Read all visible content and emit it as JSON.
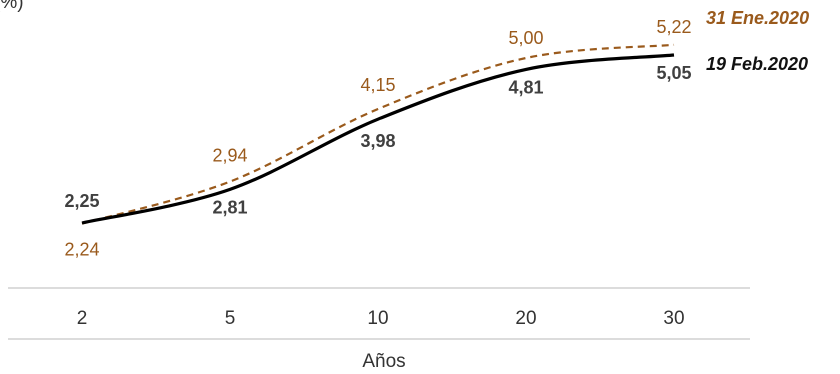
{
  "top_left_text": "(%)",
  "chart_data": {
    "type": "line",
    "x": [
      2,
      5,
      10,
      20,
      30
    ],
    "categories": [
      "2",
      "5",
      "10",
      "20",
      "30"
    ],
    "xlabel": "Años",
    "ylabel": "(%)",
    "ylim": [
      1.6,
      5.6
    ],
    "grid": false,
    "legend": "right, at line ends",
    "series": [
      {
        "name": "31 Ene.2020",
        "values": [
          2.24,
          2.94,
          4.15,
          5.0,
          5.22
        ],
        "labels": [
          "2,24",
          "2,94",
          "4,15",
          "5,00",
          "5,22"
        ],
        "color": "#9a5a1c",
        "style": "dashed"
      },
      {
        "name": "19 Feb.2020",
        "values": [
          2.25,
          2.81,
          3.98,
          4.81,
          5.05
        ],
        "labels": [
          "2,25",
          "2,81",
          "3,98",
          "4,81",
          "5,05"
        ],
        "color": "#000000",
        "style": "solid"
      }
    ]
  }
}
